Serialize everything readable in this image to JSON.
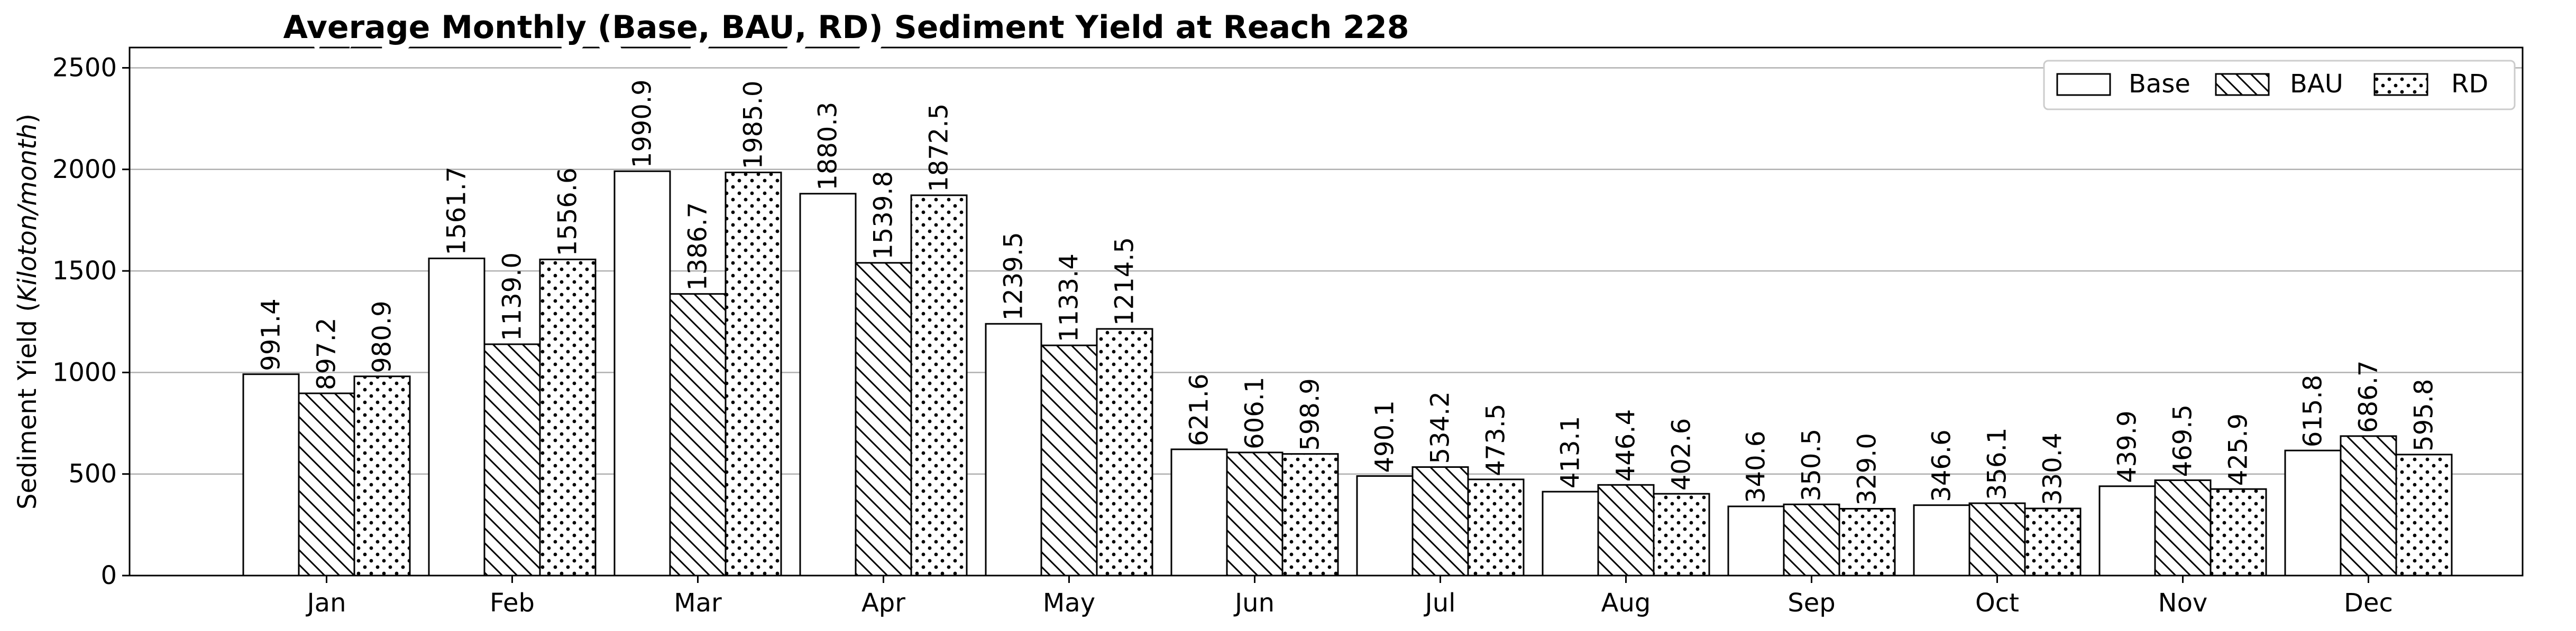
{
  "chart_data": {
    "type": "bar",
    "title": "Average Monthly (Base, BAU, RD) Sediment Yield at Reach 228",
    "xlabel": "",
    "ylabel": "Sediment Yield (Kiloton/month)",
    "ylabel_main": "Sediment Yield (",
    "ylabel_italic": "Kiloton/month",
    "ylabel_close": ")",
    "ylim": [
      0,
      2600
    ],
    "yticks": [
      0,
      500,
      1000,
      1500,
      2000,
      2500
    ],
    "grid": "horizontal",
    "legend_position": "top-right",
    "categories": [
      "Jan",
      "Feb",
      "Mar",
      "Apr",
      "May",
      "Jun",
      "Jul",
      "Aug",
      "Sep",
      "Oct",
      "Nov",
      "Dec"
    ],
    "series": [
      {
        "name": "Base",
        "pattern": "none",
        "values": [
          991.4,
          1561.7,
          1990.9,
          1880.3,
          1239.5,
          621.6,
          490.1,
          413.1,
          340.6,
          346.6,
          439.9,
          615.8
        ]
      },
      {
        "name": "BAU",
        "pattern": "hatch",
        "values": [
          897.2,
          1139.0,
          1386.7,
          1539.8,
          1133.4,
          606.1,
          534.2,
          446.4,
          350.5,
          356.1,
          469.5,
          686.7
        ]
      },
      {
        "name": "RD",
        "pattern": "dots",
        "values": [
          980.9,
          1556.6,
          1985.0,
          1872.5,
          1214.5,
          598.9,
          473.5,
          402.6,
          329.0,
          330.4,
          425.9,
          595.8
        ]
      }
    ],
    "colors": {
      "bar_fill": "#ffffff",
      "bar_edge": "#000000",
      "grid": "#b0b0b0"
    }
  }
}
